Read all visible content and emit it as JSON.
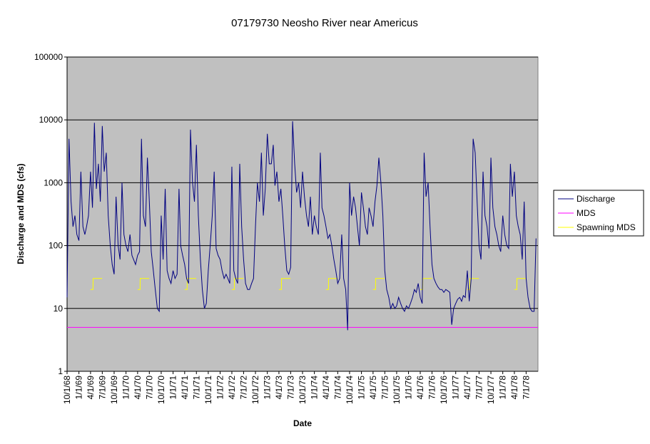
{
  "chart_data": {
    "type": "line",
    "title": "07179730 Neosho River near Americus",
    "x_label": "Date",
    "y_label": "Discharge and MDS (cfs)",
    "log_y": true,
    "grid": true,
    "legend": "right",
    "ylim": [
      1,
      100000
    ],
    "yticks": [
      1,
      10,
      100,
      1000,
      10000,
      100000
    ],
    "xlim": [
      "10/1/68",
      "10/1/78"
    ],
    "xticks": [
      "10/1/68",
      "1/1/69",
      "4/1/69",
      "7/1/69",
      "10/1/69",
      "1/1/70",
      "4/1/70",
      "7/1/70",
      "10/1/70",
      "1/1/71",
      "4/1/71",
      "7/1/71",
      "10/1/71",
      "1/1/72",
      "4/1/72",
      "7/1/72",
      "10/1/72",
      "1/1/73",
      "4/1/73",
      "7/1/73",
      "10/1/73",
      "1/1/74",
      "4/1/74",
      "7/1/74",
      "10/1/74",
      "1/1/75",
      "4/1/75",
      "7/1/75",
      "10/1/75",
      "1/1/76",
      "4/1/76",
      "7/1/76",
      "10/1/76",
      "1/1/77",
      "4/1/77",
      "7/1/77",
      "10/1/77",
      "1/1/78",
      "4/1/78",
      "7/1/78"
    ],
    "series": [
      {
        "name": "Discharge",
        "color": "#000080",
        "x": [
          "10/1/68",
          "10/16/68",
          "11/1/68",
          "11/16/68",
          "12/1/68",
          "12/16/68",
          "1/1/69",
          "1/16/69",
          "2/1/69",
          "2/16/69",
          "3/1/69",
          "3/16/69",
          "4/1/69",
          "4/16/69",
          "5/1/69",
          "5/16/69",
          "6/1/69",
          "6/16/69",
          "7/1/69",
          "7/16/69",
          "8/1/69",
          "8/16/69",
          "9/1/69",
          "9/16/69",
          "10/1/69",
          "10/16/69",
          "11/1/69",
          "11/16/69",
          "12/1/69",
          "12/16/69",
          "1/1/70",
          "1/16/70",
          "2/1/70",
          "2/16/70",
          "3/1/70",
          "3/16/70",
          "4/1/70",
          "4/16/70",
          "5/1/70",
          "5/16/70",
          "6/1/70",
          "6/16/70",
          "7/1/70",
          "7/16/70",
          "8/1/70",
          "8/16/70",
          "9/1/70",
          "9/16/70",
          "10/1/70",
          "10/16/70",
          "11/1/70",
          "11/16/70",
          "12/1/70",
          "12/16/70",
          "1/1/71",
          "1/16/71",
          "2/1/71",
          "2/16/71",
          "3/1/71",
          "3/16/71",
          "4/1/71",
          "4/16/71",
          "5/1/71",
          "5/16/71",
          "6/1/71",
          "6/16/71",
          "7/1/71",
          "7/16/71",
          "8/1/71",
          "8/16/71",
          "9/1/71",
          "9/16/71",
          "10/1/71",
          "10/16/71",
          "11/1/71",
          "11/16/71",
          "12/1/71",
          "12/16/71",
          "1/1/72",
          "1/16/72",
          "2/1/72",
          "2/16/72",
          "3/1/72",
          "3/16/72",
          "4/1/72",
          "4/16/72",
          "5/1/72",
          "5/16/72",
          "6/1/72",
          "6/16/72",
          "7/1/72",
          "7/16/72",
          "8/1/72",
          "8/16/72",
          "9/1/72",
          "9/16/72",
          "10/1/72",
          "10/16/72",
          "11/1/72",
          "11/16/72",
          "12/1/72",
          "12/16/72",
          "1/1/73",
          "1/16/73",
          "2/1/73",
          "2/16/73",
          "3/1/73",
          "3/16/73",
          "4/1/73",
          "4/16/73",
          "5/1/73",
          "5/16/73",
          "6/1/73",
          "6/16/73",
          "7/1/73",
          "7/16/73",
          "8/1/73",
          "8/16/73",
          "9/1/73",
          "9/16/73",
          "10/1/73",
          "10/16/73",
          "11/1/73",
          "11/16/73",
          "12/1/73",
          "12/16/73",
          "1/1/74",
          "1/16/74",
          "2/1/74",
          "2/16/74",
          "3/1/74",
          "3/16/74",
          "4/1/74",
          "4/16/74",
          "5/1/74",
          "5/16/74",
          "6/1/74",
          "6/16/74",
          "7/1/74",
          "7/16/74",
          "8/1/74",
          "8/16/74",
          "9/1/74",
          "9/16/74",
          "10/1/74",
          "10/16/74",
          "11/1/74",
          "11/16/74",
          "12/1/74",
          "12/16/74",
          "1/1/75",
          "1/16/75",
          "2/1/75",
          "2/16/75",
          "3/1/75",
          "3/16/75",
          "4/1/75",
          "4/16/75",
          "5/1/75",
          "5/16/75",
          "6/1/75",
          "6/16/75",
          "7/1/75",
          "7/16/75",
          "8/1/75",
          "8/16/75",
          "9/1/75",
          "9/16/75",
          "10/1/75",
          "10/16/75",
          "11/1/75",
          "11/16/75",
          "12/1/75",
          "12/16/75",
          "1/1/76",
          "1/16/76",
          "2/1/76",
          "2/16/76",
          "3/1/76",
          "3/16/76",
          "4/1/76",
          "4/16/76",
          "5/1/76",
          "5/16/76",
          "6/1/76",
          "6/16/76",
          "7/1/76",
          "7/16/76",
          "8/1/76",
          "8/16/76",
          "9/1/76",
          "9/16/76",
          "10/1/76",
          "10/16/76",
          "11/1/76",
          "11/16/76",
          "12/1/76",
          "12/16/76",
          "1/1/77",
          "1/16/77",
          "2/1/77",
          "2/16/77",
          "3/1/77",
          "3/16/77",
          "4/1/77",
          "4/16/77",
          "5/1/77",
          "5/16/77",
          "6/1/77",
          "6/16/77",
          "7/1/77",
          "7/16/77",
          "8/1/77",
          "8/16/77",
          "9/1/77",
          "9/16/77",
          "10/1/77",
          "10/16/77",
          "11/1/77",
          "11/16/77",
          "12/1/77",
          "12/16/77",
          "1/1/78",
          "1/16/78",
          "2/1/78",
          "2/16/78",
          "3/1/78",
          "3/16/78",
          "4/1/78",
          "4/16/78",
          "5/1/78",
          "5/16/78",
          "6/1/78",
          "6/16/78",
          "7/1/78",
          "7/16/78",
          "8/1/78",
          "8/16/78",
          "9/1/78",
          "9/16/78"
        ],
        "values": [
          15,
          5000,
          500,
          200,
          300,
          150,
          120,
          1500,
          200,
          150,
          200,
          300,
          1500,
          400,
          9000,
          800,
          2000,
          500,
          8000,
          1500,
          3000,
          300,
          100,
          50,
          35,
          600,
          100,
          60,
          1000,
          150,
          100,
          80,
          150,
          70,
          60,
          50,
          70,
          80,
          5000,
          300,
          200,
          2500,
          500,
          80,
          40,
          20,
          10,
          9,
          300,
          60,
          800,
          40,
          30,
          25,
          40,
          30,
          35,
          800,
          100,
          70,
          50,
          30,
          25,
          7000,
          1000,
          500,
          4000,
          300,
          60,
          20,
          10,
          12,
          40,
          100,
          300,
          1500,
          90,
          70,
          60,
          40,
          30,
          35,
          30,
          25,
          1800,
          40,
          30,
          25,
          2000,
          200,
          60,
          25,
          20,
          20,
          25,
          30,
          200,
          1000,
          500,
          3000,
          300,
          800,
          6000,
          2000,
          2000,
          4000,
          900,
          1500,
          500,
          800,
          300,
          100,
          40,
          35,
          45,
          9500,
          2000,
          700,
          1000,
          400,
          1500,
          600,
          300,
          200,
          600,
          150,
          300,
          200,
          150,
          3000,
          400,
          300,
          200,
          130,
          150,
          100,
          60,
          40,
          25,
          30,
          150,
          30,
          20,
          4.5,
          1000,
          300,
          600,
          400,
          200,
          100,
          700,
          400,
          200,
          150,
          400,
          300,
          200,
          500,
          900,
          2500,
          1000,
          300,
          40,
          20,
          15,
          10,
          12,
          10,
          11,
          15,
          12,
          10,
          9,
          11,
          10,
          12,
          15,
          20,
          18,
          25,
          15,
          12,
          3000,
          600,
          1000,
          200,
          50,
          30,
          25,
          22,
          20,
          20,
          18,
          20,
          19,
          18,
          5.5,
          10,
          12,
          14,
          15,
          13,
          16,
          15,
          40,
          13,
          30,
          5000,
          3000,
          500,
          100,
          60,
          1500,
          300,
          200,
          90,
          2500,
          400,
          200,
          150,
          100,
          80,
          300,
          150,
          100,
          90,
          2000,
          600,
          1500,
          300,
          200,
          150,
          60,
          500,
          30,
          15,
          10,
          9,
          9,
          130
        ]
      },
      {
        "name": "MDS",
        "color": "#ff00ff",
        "x": [
          "10/1/68",
          "10/1/78"
        ],
        "values": [
          5,
          5
        ]
      },
      {
        "name": "Spawning MDS",
        "color": "#ffff00",
        "x": [
          "4/1/69",
          "4/20/69",
          "4/21/69",
          "6/30/69",
          "7/1/69",
          "4/1/70",
          "4/20/70",
          "4/21/70",
          "6/30/70",
          "7/1/70",
          "4/1/71",
          "4/20/71",
          "4/21/71",
          "6/30/71",
          "7/1/71",
          "4/1/72",
          "4/20/72",
          "4/21/72",
          "6/30/72",
          "7/1/72",
          "4/1/73",
          "4/20/73",
          "4/21/73",
          "6/30/73",
          "7/1/73",
          "4/1/74",
          "4/20/74",
          "4/21/74",
          "6/30/74",
          "7/1/74",
          "4/1/75",
          "4/20/75",
          "4/21/75",
          "6/30/75",
          "7/1/75",
          "4/1/76",
          "4/20/76",
          "4/21/76",
          "6/30/76",
          "7/1/76",
          "4/1/77",
          "4/20/77",
          "4/21/77",
          "6/30/77",
          "7/1/77",
          "4/1/78",
          "4/20/78",
          "4/21/78",
          "6/30/78"
        ],
        "values": [
          20,
          20,
          30,
          30,
          null,
          20,
          20,
          30,
          30,
          null,
          20,
          20,
          30,
          30,
          null,
          20,
          20,
          30,
          30,
          null,
          20,
          20,
          30,
          30,
          null,
          20,
          20,
          30,
          30,
          null,
          20,
          20,
          30,
          30,
          null,
          20,
          20,
          30,
          30,
          null,
          20,
          20,
          30,
          30,
          null,
          20,
          20,
          30,
          30
        ]
      }
    ]
  }
}
